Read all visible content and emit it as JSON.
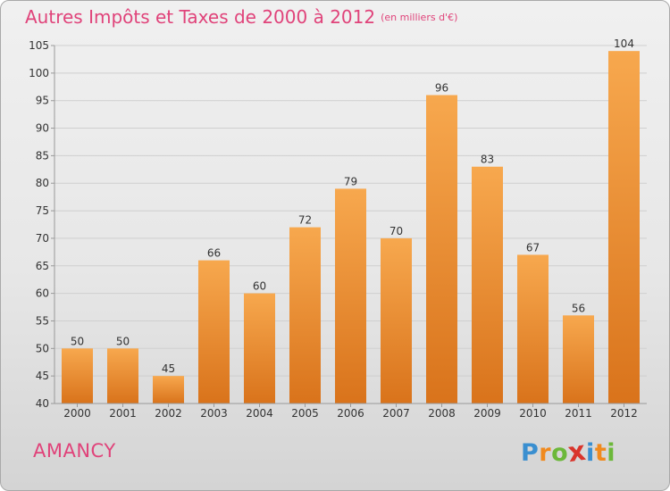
{
  "title": {
    "main": "Autres Impôts et Taxes de 2000 à 2012",
    "unit": "(en milliers d'€)"
  },
  "commune": "AMANCY",
  "logo": {
    "letters": [
      "P",
      "r",
      "o",
      "x",
      "i",
      "t",
      "i"
    ],
    "colors": [
      "#3a8fd0",
      "#f08a1e",
      "#6cb83a",
      "#d9342b",
      "#3a8fd0",
      "#f08a1e",
      "#6cb83a"
    ]
  },
  "colors": {
    "bar_top": "#f7a84e",
    "bar_bottom": "#d9731b",
    "grid": "#cfcfcf",
    "axis_text": "#333333"
  },
  "chart_data": {
    "type": "bar",
    "categories": [
      "2000",
      "2001",
      "2002",
      "2003",
      "2004",
      "2005",
      "2006",
      "2007",
      "2008",
      "2009",
      "2010",
      "2011",
      "2012"
    ],
    "values": [
      50,
      50,
      45,
      66,
      60,
      72,
      79,
      70,
      96,
      83,
      67,
      56,
      104
    ],
    "ylim": [
      40,
      105
    ],
    "yticks": [
      40,
      45,
      50,
      55,
      60,
      65,
      70,
      75,
      80,
      85,
      90,
      95,
      100,
      105
    ],
    "data_labels": true,
    "grid": "horizontal",
    "legend": "none"
  }
}
